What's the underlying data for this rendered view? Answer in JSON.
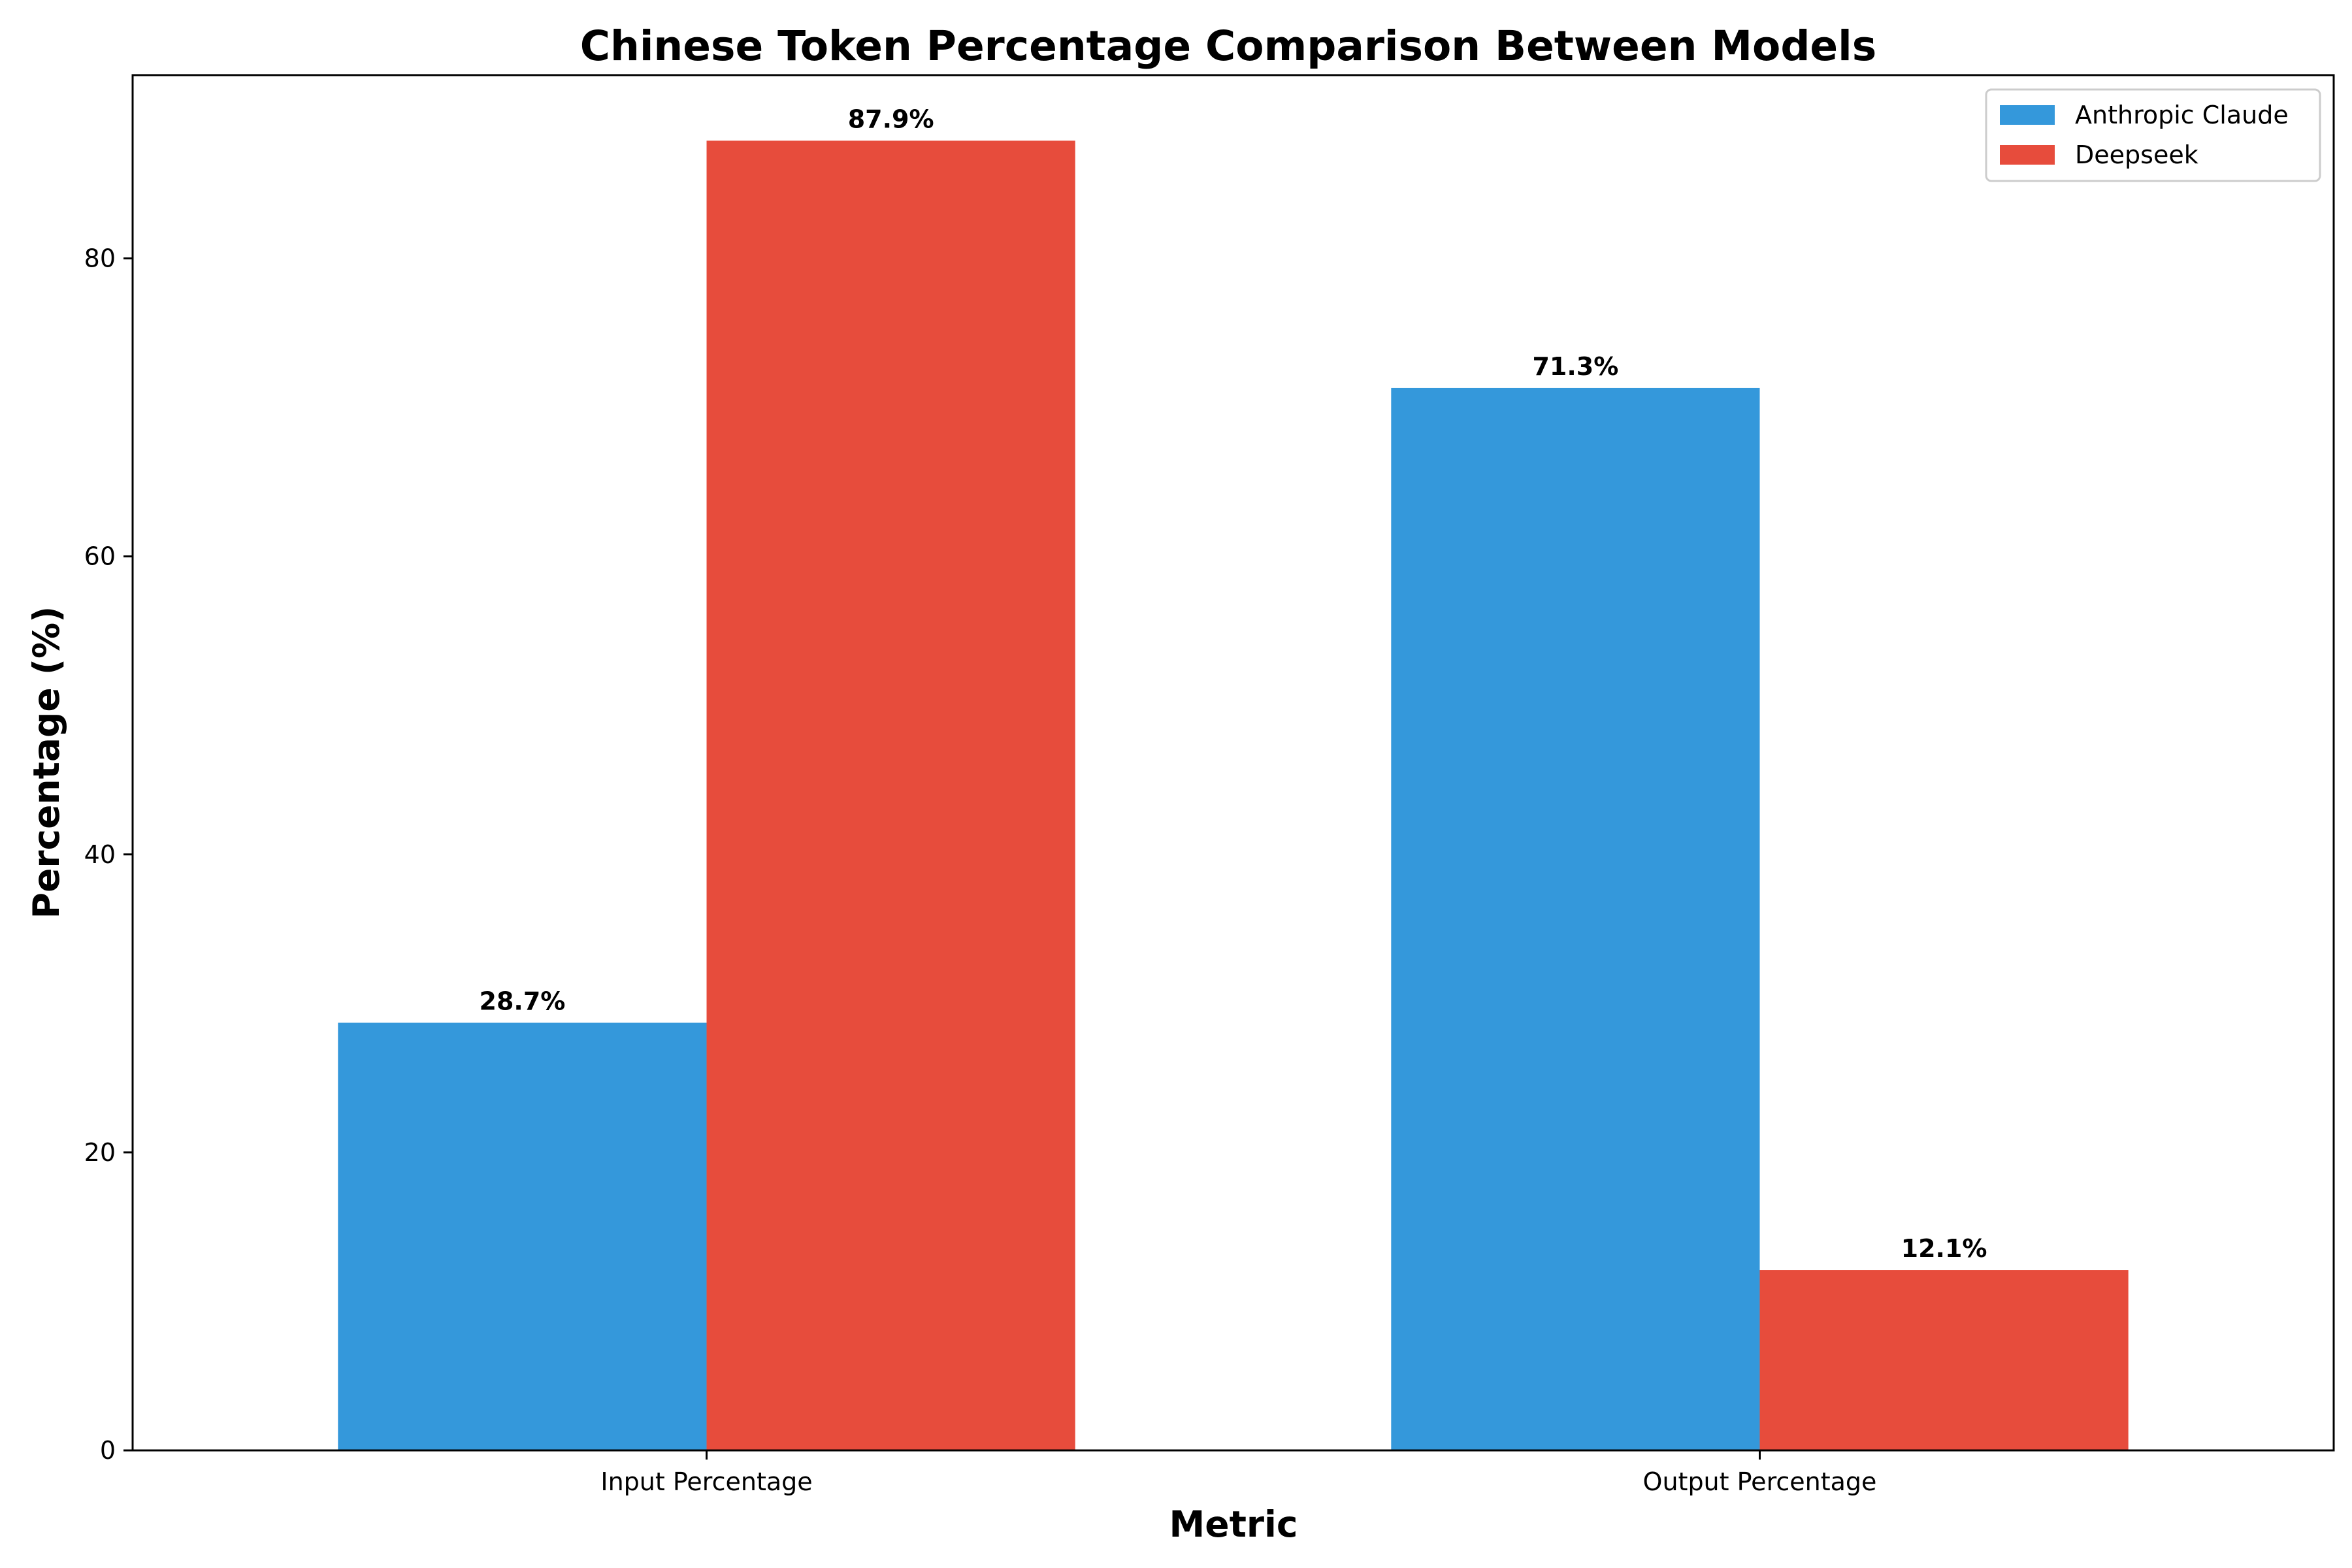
{
  "chart_data": {
    "type": "bar",
    "title": "Chinese Token Percentage Comparison Between Models",
    "xlabel": "Metric",
    "ylabel": "Percentage (%)",
    "categories": [
      "Input Percentage",
      "Output Percentage"
    ],
    "series": [
      {
        "name": "Anthropic Claude",
        "color": "#3498db",
        "values": [
          28.7,
          71.3
        ],
        "labels": [
          "28.7%",
          "71.3%"
        ]
      },
      {
        "name": "Deepseek",
        "color": "#e74c3c",
        "values": [
          87.9,
          12.1
        ],
        "labels": [
          "87.9%",
          "12.1%"
        ]
      }
    ],
    "yticks": [
      0,
      20,
      40,
      60,
      80
    ],
    "ylim": [
      0,
      92.3
    ],
    "grid": false,
    "legend_position": "top-right"
  }
}
